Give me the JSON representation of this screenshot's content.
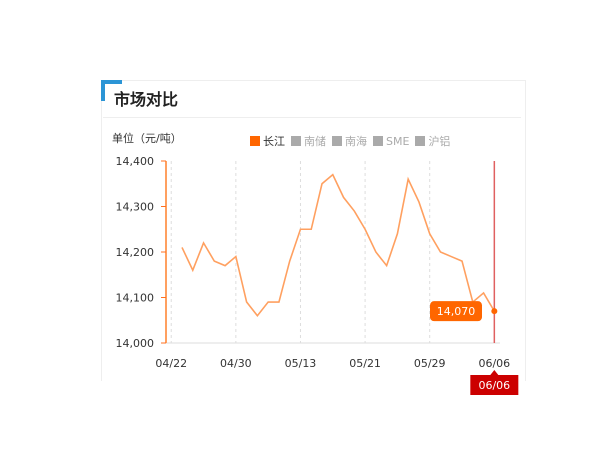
{
  "header": {
    "title": "市场对比"
  },
  "chart_data": {
    "type": "line",
    "ylabel": "单位（元/吨）",
    "ylim": [
      14000,
      14400
    ],
    "yticks": [
      "14,400",
      "14,300",
      "14,200",
      "14,100",
      "14,000"
    ],
    "ytick_values": [
      14400,
      14300,
      14200,
      14100,
      14000
    ],
    "xticks": [
      {
        "label": "04/22",
        "index": -1
      },
      {
        "label": "04/30",
        "index": 5
      },
      {
        "label": "05/13",
        "index": 11
      },
      {
        "label": "05/21",
        "index": 17
      },
      {
        "label": "05/29",
        "index": 23
      },
      {
        "label": "06/06",
        "index": 29
      }
    ],
    "legend": [
      {
        "label": "长江",
        "active": true
      },
      {
        "label": "南储",
        "active": false
      },
      {
        "label": "南海",
        "active": false
      },
      {
        "label": "SME",
        "active": false
      },
      {
        "label": "沪铝",
        "active": false
      }
    ],
    "series": [
      {
        "name": "长江",
        "color": "#ffa060",
        "values": [
          14210,
          14160,
          14220,
          14180,
          14170,
          14190,
          14090,
          14060,
          14090,
          14090,
          14180,
          14250,
          14250,
          14350,
          14370,
          14320,
          14290,
          14250,
          14200,
          14170,
          14240,
          14360,
          14310,
          14240,
          14200,
          14190,
          14180,
          14090,
          14110,
          14070
        ]
      }
    ],
    "tooltip": {
      "value": "14,070",
      "date": "06/06",
      "color": "#ff6600",
      "date_color": "#cc0000"
    },
    "grid": "vertical-dashed"
  }
}
